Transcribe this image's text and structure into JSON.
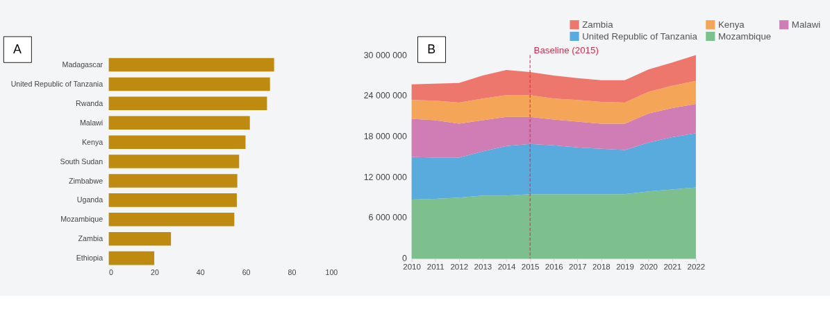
{
  "chart_data": [
    {
      "type": "bar",
      "orientation": "horizontal",
      "annotations": [
        "A"
      ],
      "categories": [
        "Madagascar",
        "United Republic of Tanzania",
        "Rwanda",
        "Malawi",
        "Kenya",
        "South Sudan",
        "Zimbabwe",
        "Uganda",
        "Mozambique",
        "Zambia",
        "Ethiopia"
      ],
      "values": [
        72.3,
        70.5,
        69.2,
        61.7,
        59.8,
        57.0,
        56.2,
        56.0,
        54.9,
        27.2,
        19.9
      ],
      "color": "#bf8a10",
      "xlim": [
        0,
        100
      ],
      "xticks": [
        0,
        20,
        40,
        60,
        80,
        100
      ],
      "grid": false
    },
    {
      "type": "area",
      "stacked": true,
      "annotations": [
        "B"
      ],
      "legend": "top right",
      "grid": false,
      "x": [
        2010,
        2011,
        2012,
        2013,
        2014,
        2015,
        2016,
        2017,
        2018,
        2019,
        2020,
        2021,
        2022
      ],
      "xlim": [
        2010,
        2022
      ],
      "xticks": [
        2010,
        2011,
        2012,
        2013,
        2014,
        2015,
        2016,
        2017,
        2018,
        2019,
        2020,
        2021,
        2022
      ],
      "ylim": [
        0,
        30000000
      ],
      "yticks": [
        {
          "value": 0,
          "label": "0"
        },
        {
          "value": 6000000,
          "label": "6 000 000"
        },
        {
          "value": 12000000,
          "label": "12 000 000"
        },
        {
          "value": 18000000,
          "label": "18 000 000"
        },
        {
          "value": 24000000,
          "label": "24 000 000"
        },
        {
          "value": 30000000,
          "label": "30 000 000"
        }
      ],
      "series": [
        {
          "name": "Mozambique",
          "color": "#7dc08e",
          "values": [
            8700000,
            8800000,
            9000000,
            9300000,
            9300000,
            9500000,
            9500000,
            9500000,
            9500000,
            9500000,
            9900000,
            10200000,
            10500000
          ]
        },
        {
          "name": "United Republic of Tanzania",
          "color": "#5aabdd",
          "values": [
            6300000,
            6100000,
            5900000,
            6500000,
            7300000,
            7400000,
            7200000,
            6900000,
            6700000,
            6500000,
            7200000,
            7700000,
            8000000
          ]
        },
        {
          "name": "Malawi",
          "color": "#cf7db4",
          "values": [
            5600000,
            5500000,
            5000000,
            4600000,
            4300000,
            4000000,
            3800000,
            3800000,
            3700000,
            3900000,
            4300000,
            4300000,
            4300000
          ]
        },
        {
          "name": "Kenya",
          "color": "#f4a557",
          "values": [
            2800000,
            2900000,
            3100000,
            3200000,
            3200000,
            3200000,
            3100000,
            3200000,
            3200000,
            3100000,
            3200000,
            3300000,
            3400000
          ]
        },
        {
          "name": "Zambia",
          "color": "#ee776d",
          "values": [
            2300000,
            2500000,
            2900000,
            3400000,
            3700000,
            3400000,
            3400000,
            3200000,
            3200000,
            3300000,
            3300000,
            3400000,
            3800000
          ]
        }
      ],
      "ref_lines": [
        {
          "axis": "x",
          "value": 2015,
          "label": "Baseline (2015)",
          "color": "#e0284a",
          "line_style": "dashed"
        }
      ]
    }
  ]
}
